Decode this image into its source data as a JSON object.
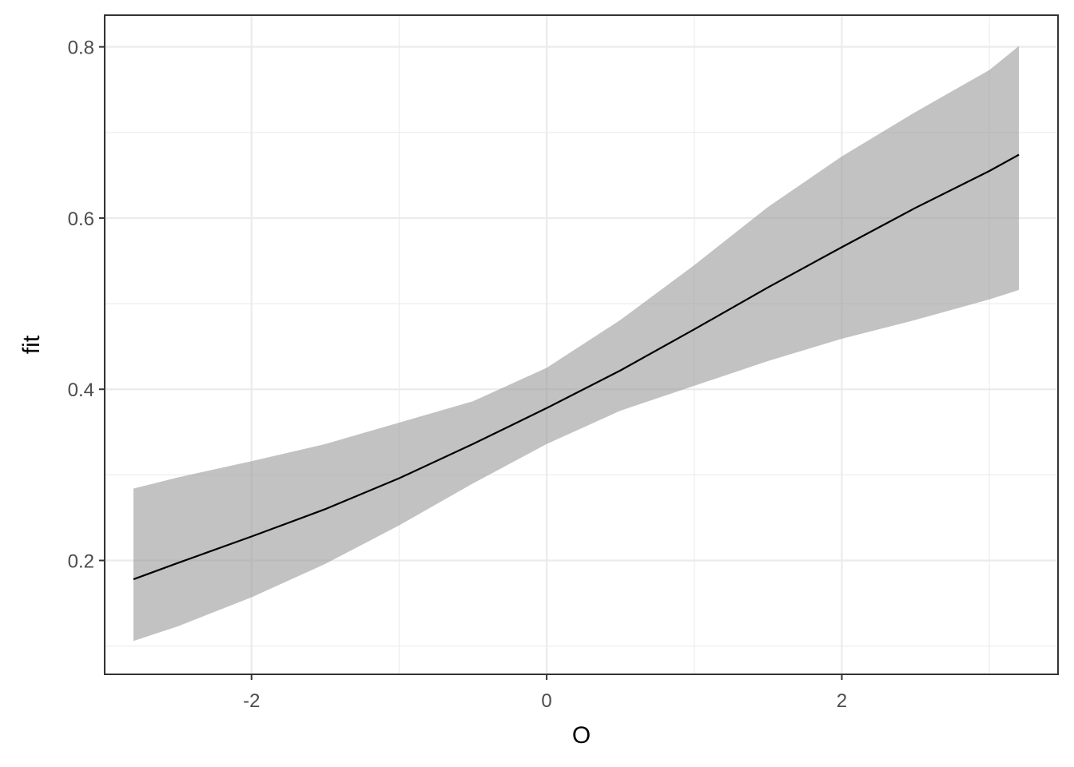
{
  "chart_data": {
    "type": "line",
    "title": "",
    "xlabel": "O",
    "ylabel": "fit",
    "xlim": [
      -2.995,
      3.465
    ],
    "ylim": [
      0.067,
      0.837
    ],
    "x_ticks": [
      -2,
      0,
      2
    ],
    "x_tick_labels": [
      "-2",
      "0",
      "2"
    ],
    "y_ticks": [
      0.2,
      0.4,
      0.6,
      0.8
    ],
    "y_tick_labels": [
      "0.2",
      "0.4",
      "0.6",
      "0.8"
    ],
    "x_minor_ticks": [
      -3,
      -1,
      1,
      3
    ],
    "y_minor_ticks": [
      0.1,
      0.3,
      0.5,
      0.7
    ],
    "grid": true,
    "legend": "none",
    "series": [
      {
        "x": [
          -2.8,
          -2.5,
          -2.0,
          -1.5,
          -1.0,
          -0.5,
          0.0,
          0.5,
          1.0,
          1.5,
          2.0,
          2.5,
          3.0,
          3.2
        ],
        "fit": [
          0.178,
          0.197,
          0.228,
          0.26,
          0.296,
          0.336,
          0.378,
          0.422,
          0.47,
          0.519,
          0.566,
          0.612,
          0.655,
          0.674
        ],
        "lower": [
          0.106,
          0.123,
          0.157,
          0.196,
          0.241,
          0.29,
          0.336,
          0.375,
          0.404,
          0.433,
          0.459,
          0.481,
          0.505,
          0.516
        ],
        "upper": [
          0.284,
          0.297,
          0.316,
          0.336,
          0.361,
          0.386,
          0.425,
          0.481,
          0.545,
          0.613,
          0.672,
          0.724,
          0.773,
          0.801
        ]
      }
    ],
    "colors": {
      "line": "#000000",
      "ribbon": "#999999",
      "panel_border": "#333333",
      "grid": "#ebebeb",
      "tick_text": "#4d4d4d"
    }
  }
}
